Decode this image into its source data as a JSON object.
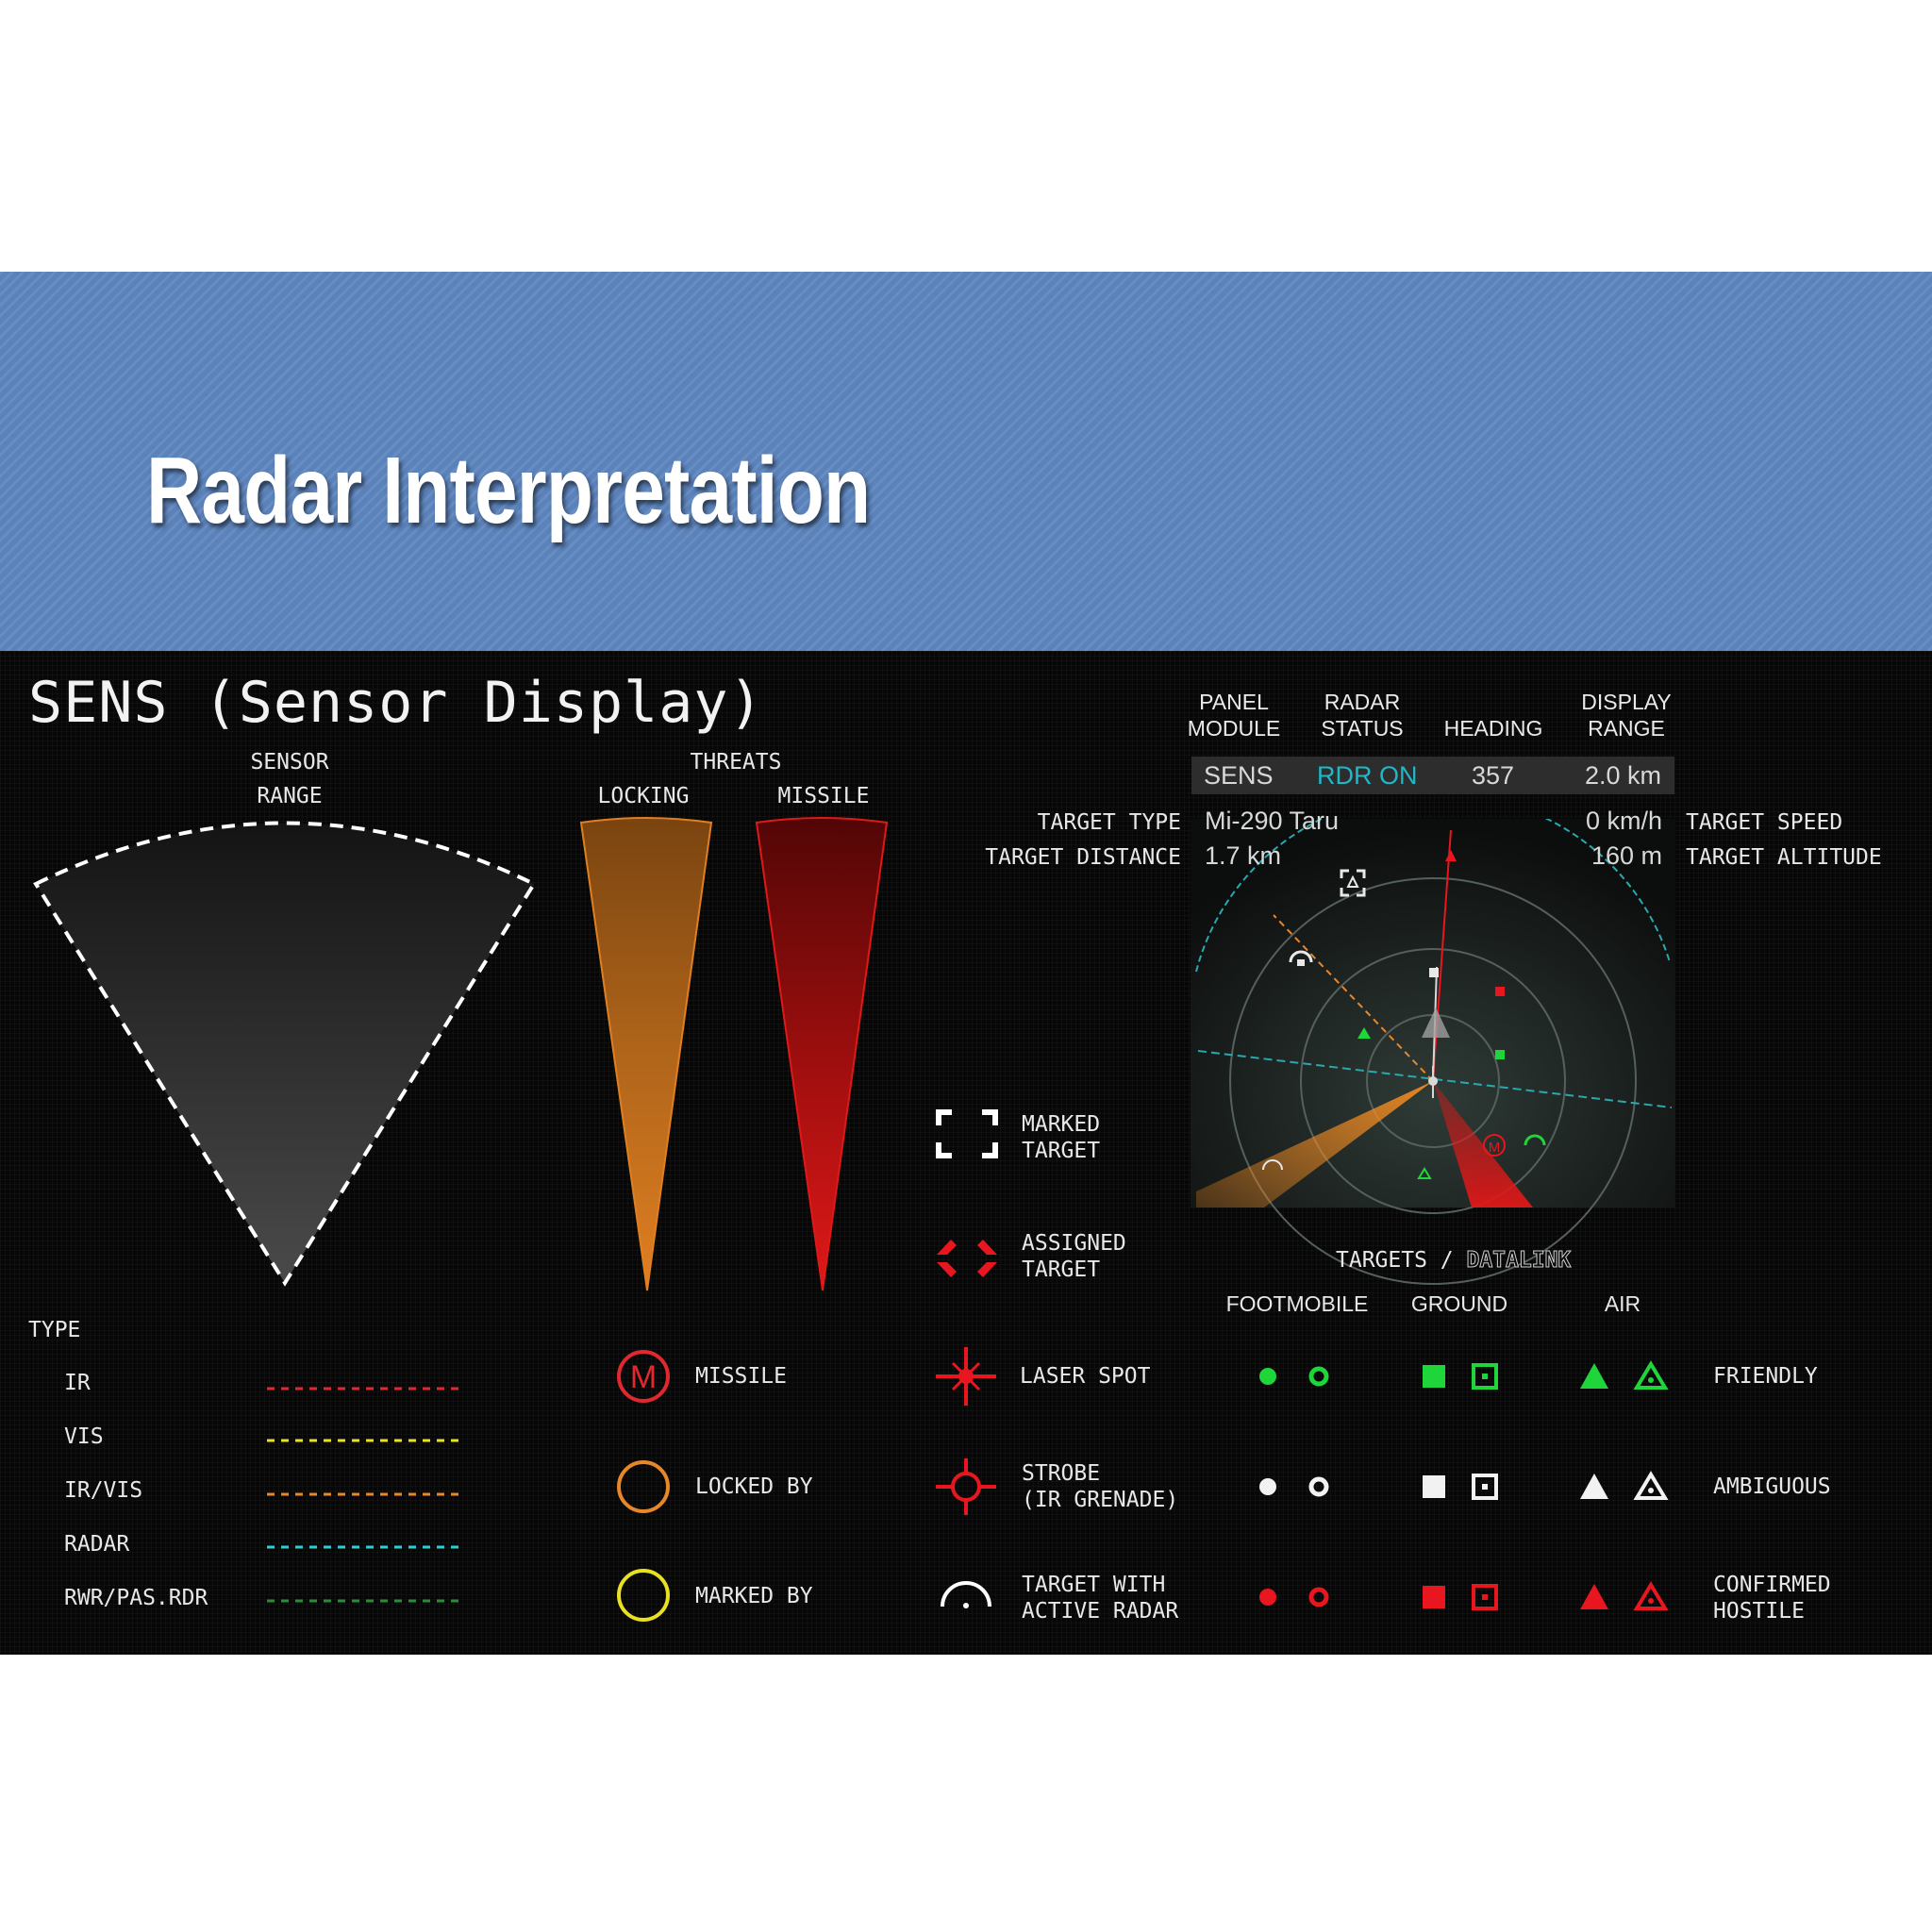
{
  "slide_title": "Radar Interpretation",
  "panel_title": "SENS (Sensor Display)",
  "sensor_range": {
    "label_line1": "SENSOR",
    "label_line2": "RANGE"
  },
  "threats": {
    "label": "THREATS",
    "locking": "LOCKING",
    "missile": "MISSILE"
  },
  "type_legend": {
    "heading": "TYPE",
    "items": [
      {
        "label": "IR",
        "color": "#e0282e"
      },
      {
        "label": "VIS",
        "color": "#e8e021"
      },
      {
        "label": "IR/VIS",
        "color": "#e8872a"
      },
      {
        "label": "RADAR",
        "color": "#2ad0d6"
      },
      {
        "label": "RWR/PAS.RDR",
        "color": "#2e8a3a"
      }
    ]
  },
  "threat_symbols": [
    {
      "icon": "missile-m-icon",
      "label": "MISSILE",
      "color": "#e0282e"
    },
    {
      "icon": "locked-by-circle-icon",
      "label": "LOCKED BY",
      "color": "#e8872a"
    },
    {
      "icon": "marked-by-circle-icon",
      "label": "MARKED BY",
      "color": "#e8e021"
    }
  ],
  "target_symbols": [
    {
      "icon": "marked-target-icon",
      "line1": "MARKED",
      "line2": "TARGET"
    },
    {
      "icon": "assigned-target-icon",
      "line1": "ASSIGNED",
      "line2": "TARGET"
    },
    {
      "icon": "laser-spot-icon",
      "line1": "LASER SPOT",
      "line2": ""
    },
    {
      "icon": "strobe-icon",
      "line1": "STROBE",
      "line2": "(IR GRENADE)"
    },
    {
      "icon": "active-radar-icon",
      "line1": "TARGET WITH",
      "line2": "ACTIVE RADAR"
    }
  ],
  "status_header": {
    "panel_module": {
      "line1": "PANEL",
      "line2": "MODULE",
      "value": "SENS"
    },
    "radar_status": {
      "line1": "RADAR",
      "line2": "STATUS",
      "value": "RDR ON"
    },
    "heading": {
      "line1": "HEADING",
      "value": "357"
    },
    "display_range": {
      "line1": "DISPLAY",
      "line2": "RANGE",
      "value": "2.0 km"
    }
  },
  "target_info": {
    "type_label": "TARGET TYPE",
    "type_value": "Mi-290 Taru",
    "distance_label": "TARGET DISTANCE",
    "distance_value": "1.7 km",
    "speed_label": "TARGET SPEED",
    "speed_value": "0 km/h",
    "altitude_label": "TARGET ALTITUDE",
    "altitude_value": "160 m"
  },
  "datalink": {
    "heading_main": "TARGETS /",
    "heading_sub": "DATALINK",
    "columns": [
      "FOOTMOBILE",
      "GROUND",
      "AIR"
    ],
    "rows": [
      {
        "label_line1": "FRIENDLY",
        "label_line2": "",
        "color": "#1fd63a"
      },
      {
        "label_line1": "AMBIGUOUS",
        "label_line2": "",
        "color": "#f2f2f2"
      },
      {
        "label_line1": "CONFIRMED",
        "label_line2": "HOSTILE",
        "color": "#e8161e"
      }
    ]
  },
  "colors": {
    "radar_status_value": "#20b8c8",
    "locking_cone": "#d8781e",
    "missile_cone": "#d31414"
  }
}
